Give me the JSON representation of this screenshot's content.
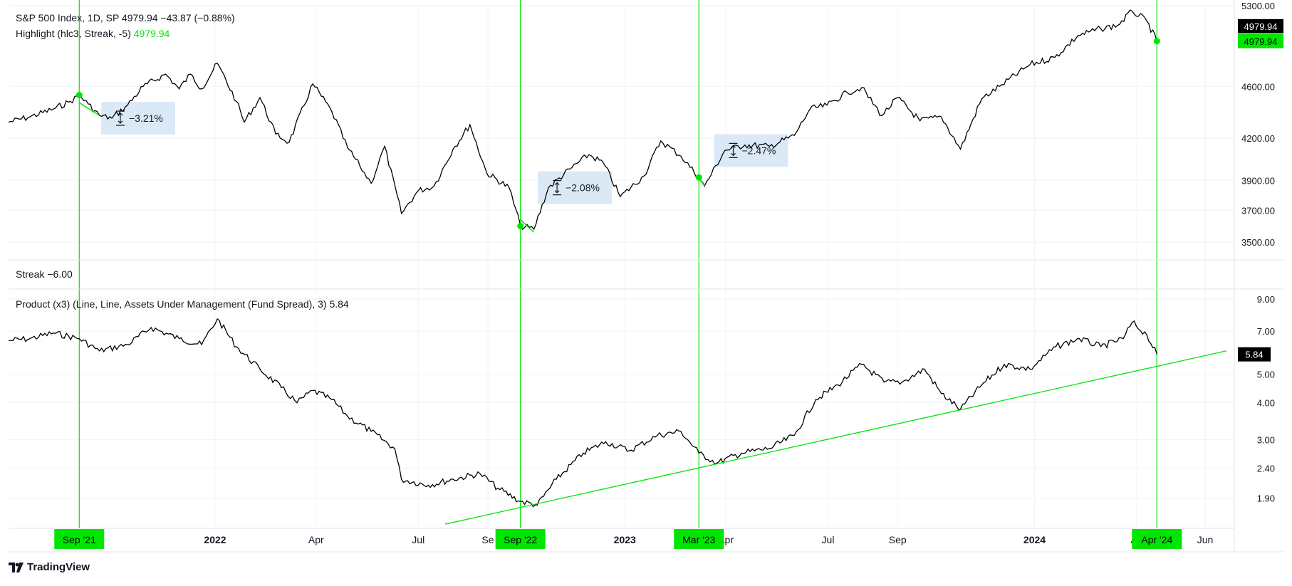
{
  "legend": {
    "price_line": "S&P 500 Index, 1D, SP  4979.94  −43.87 (−0.88%)",
    "highlight_prefix": "Highlight (hlc3, Streak, -5)",
    "highlight_value": "4979.94",
    "streak": "Streak  −6.00",
    "product": "Product (x3) (Line, Line, Assets Under Management (Fund Spread), 3)  5.84"
  },
  "colors": {
    "line": "#000000",
    "highlight": "#00e600",
    "marker_text": "#000000",
    "measure_box": "#dbe9f7",
    "grid": "#f0f3fa",
    "axis_text": "#131722",
    "label_dark": "#000000"
  },
  "logo_text": "TradingView",
  "x_axis": {
    "ticks": [
      "2022",
      "Apr",
      "Jul",
      "Se",
      "2023",
      "Apr",
      "Jul",
      "Sep",
      "2024",
      "Ap",
      "Jun"
    ],
    "bold_ticks": [
      "2022",
      "2023",
      "2024"
    ],
    "highlight_labels": [
      "Sep '21",
      "Sep '22",
      "Mar '23",
      "Apr '24"
    ]
  },
  "chart_data": [
    {
      "type": "line",
      "title": "S&P 500 Index, 1D, SP",
      "scale": "log",
      "y_ticks": [
        "5300.00",
        "4600.00",
        "4200.00",
        "3900.00",
        "3700.00",
        "3500.00"
      ],
      "ylim": [
        3430,
        5300
      ],
      "last_value_labels": [
        "4979.94",
        "4979.94"
      ],
      "x_range": [
        "2021-07-01",
        "2024-06-20"
      ],
      "series": [
        {
          "points": [
            [
              "2021-07-01",
              4320
            ],
            [
              "2021-07-20",
              4360
            ],
            [
              "2021-08-10",
              4420
            ],
            [
              "2021-08-25",
              4480
            ],
            [
              "2021-09-02",
              4530
            ],
            [
              "2021-09-10",
              4460
            ],
            [
              "2021-09-20",
              4370
            ],
            [
              "2021-10-01",
              4350
            ],
            [
              "2021-10-15",
              4450
            ],
            [
              "2021-10-29",
              4600
            ],
            [
              "2021-11-18",
              4700
            ],
            [
              "2021-11-30",
              4580
            ],
            [
              "2021-12-10",
              4700
            ],
            [
              "2021-12-20",
              4580
            ],
            [
              "2022-01-03",
              4790
            ],
            [
              "2022-01-20",
              4480
            ],
            [
              "2022-01-27",
              4320
            ],
            [
              "2022-02-10",
              4510
            ],
            [
              "2022-02-24",
              4230
            ],
            [
              "2022-03-08",
              4170
            ],
            [
              "2022-03-29",
              4620
            ],
            [
              "2022-04-15",
              4400
            ],
            [
              "2022-04-29",
              4130
            ],
            [
              "2022-05-10",
              4000
            ],
            [
              "2022-05-20",
              3880
            ],
            [
              "2022-06-01",
              4140
            ],
            [
              "2022-06-16",
              3680
            ],
            [
              "2022-07-01",
              3830
            ],
            [
              "2022-07-15",
              3860
            ],
            [
              "2022-08-01",
              4120
            ],
            [
              "2022-08-16",
              4300
            ],
            [
              "2022-08-31",
              3950
            ],
            [
              "2022-09-20",
              3850
            ],
            [
              "2022-09-30",
              3600
            ],
            [
              "2022-10-12",
              3580
            ],
            [
              "2022-10-25",
              3850
            ],
            [
              "2022-11-15",
              3990
            ],
            [
              "2022-11-30",
              4080
            ],
            [
              "2022-12-13",
              4020
            ],
            [
              "2022-12-28",
              3790
            ],
            [
              "2023-01-18",
              3930
            ],
            [
              "2023-02-02",
              4180
            ],
            [
              "2023-02-20",
              4070
            ],
            [
              "2023-03-08",
              3920
            ],
            [
              "2023-03-13",
              3860
            ],
            [
              "2023-03-31",
              4110
            ],
            [
              "2023-04-18",
              4150
            ],
            [
              "2023-05-10",
              4140
            ],
            [
              "2023-06-01",
              4220
            ],
            [
              "2023-06-15",
              4420
            ],
            [
              "2023-06-30",
              4450
            ],
            [
              "2023-07-18",
              4550
            ],
            [
              "2023-07-31",
              4590
            ],
            [
              "2023-08-18",
              4370
            ],
            [
              "2023-09-01",
              4510
            ],
            [
              "2023-09-21",
              4330
            ],
            [
              "2023-10-10",
              4360
            ],
            [
              "2023-10-27",
              4120
            ],
            [
              "2023-11-15",
              4500
            ],
            [
              "2023-12-01",
              4600
            ],
            [
              "2023-12-28",
              4780
            ],
            [
              "2024-01-19",
              4840
            ],
            [
              "2024-02-09",
              5030
            ],
            [
              "2024-02-29",
              5090
            ],
            [
              "2024-03-15",
              5120
            ],
            [
              "2024-03-28",
              5250
            ],
            [
              "2024-04-10",
              5160
            ],
            [
              "2024-04-19",
              4979.94
            ]
          ]
        }
      ],
      "highlight_dates": [
        "2021-09-02",
        "2022-09-30",
        "2023-03-08",
        "2024-04-19"
      ],
      "highlight_segments": [
        [
          [
            "2021-09-02",
            4470
          ],
          [
            "2021-09-20",
            4370
          ]
        ],
        [
          [
            "2022-09-30",
            3640
          ],
          [
            "2022-10-12",
            3560
          ]
        ],
        [
          [
            "2023-03-08",
            3920
          ],
          [
            "2023-03-13",
            3860
          ]
        ]
      ],
      "measurements": [
        {
          "label": "−3.21%",
          "date": "2021-10-01"
        },
        {
          "label": "−2.08%",
          "date": "2022-10-25"
        },
        {
          "label": "−2.47%",
          "date": "2023-03-31"
        }
      ]
    },
    {
      "type": "line",
      "title": "Product (x3) (Line, Line, Assets Under Management (Fund Spread), 3)",
      "scale": "log",
      "y_ticks": [
        "9.00",
        "7.00",
        "5.00",
        "4.00",
        "3.00",
        "2.40",
        "1.90"
      ],
      "ylim": [
        1.5,
        9.3
      ],
      "last_value_label": "5.84",
      "x_range": [
        "2021-07-01",
        "2024-06-20"
      ],
      "series": [
        {
          "points": [
            [
              "2021-07-01",
              6.5
            ],
            [
              "2021-07-20",
              6.6
            ],
            [
              "2021-08-10",
              6.9
            ],
            [
              "2021-09-02",
              6.6
            ],
            [
              "2021-09-20",
              6.0
            ],
            [
              "2021-10-15",
              6.3
            ],
            [
              "2021-11-05",
              7.2
            ],
            [
              "2021-11-30",
              6.6
            ],
            [
              "2021-12-20",
              6.3
            ],
            [
              "2022-01-03",
              7.7
            ],
            [
              "2022-01-20",
              6.2
            ],
            [
              "2022-02-10",
              5.2
            ],
            [
              "2022-03-01",
              4.5
            ],
            [
              "2022-03-15",
              4.0
            ],
            [
              "2022-03-29",
              4.4
            ],
            [
              "2022-04-15",
              4.1
            ],
            [
              "2022-04-29",
              3.6
            ],
            [
              "2022-05-20",
              3.2
            ],
            [
              "2022-06-10",
              2.8
            ],
            [
              "2022-06-16",
              2.2
            ],
            [
              "2022-07-10",
              2.1
            ],
            [
              "2022-08-01",
              2.2
            ],
            [
              "2022-08-25",
              2.3
            ],
            [
              "2022-09-10",
              2.05
            ],
            [
              "2022-09-30",
              1.85
            ],
            [
              "2022-10-15",
              1.8
            ],
            [
              "2022-11-01",
              2.2
            ],
            [
              "2022-11-25",
              2.7
            ],
            [
              "2022-12-15",
              2.95
            ],
            [
              "2023-01-05",
              2.75
            ],
            [
              "2023-01-30",
              3.1
            ],
            [
              "2023-02-20",
              3.2
            ],
            [
              "2023-03-08",
              2.7
            ],
            [
              "2023-03-24",
              2.5
            ],
            [
              "2023-04-15",
              2.7
            ],
            [
              "2023-05-10",
              2.8
            ],
            [
              "2023-06-01",
              3.1
            ],
            [
              "2023-06-20",
              4.1
            ],
            [
              "2023-07-10",
              4.6
            ],
            [
              "2023-07-31",
              5.4
            ],
            [
              "2023-08-20",
              4.7
            ],
            [
              "2023-09-05",
              4.7
            ],
            [
              "2023-09-25",
              5.2
            ],
            [
              "2023-10-10",
              4.3
            ],
            [
              "2023-10-27",
              3.8
            ],
            [
              "2023-11-15",
              4.6
            ],
            [
              "2023-12-05",
              5.4
            ],
            [
              "2023-12-28",
              5.2
            ],
            [
              "2024-01-20",
              6.2
            ],
            [
              "2024-02-10",
              6.6
            ],
            [
              "2024-02-29",
              6.2
            ],
            [
              "2024-03-20",
              6.6
            ],
            [
              "2024-03-28",
              7.5
            ],
            [
              "2024-04-10",
              6.8
            ],
            [
              "2024-04-19",
              5.84
            ]
          ]
        }
      ],
      "trendline": [
        [
          "2022-07-25",
          1.55
        ],
        [
          "2024-06-20",
          6.0
        ]
      ],
      "highlight_dates": [
        "2021-09-02",
        "2022-09-30",
        "2023-03-08",
        "2024-04-19"
      ]
    }
  ],
  "streak_pane": {
    "label": "Streak  −6.00"
  }
}
